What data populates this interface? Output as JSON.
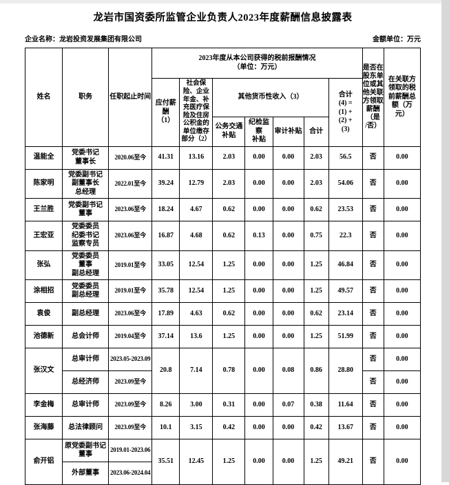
{
  "page": {
    "title": "龙岩市国资委所监管企业负责人2023年度薪酬信息披露表",
    "company_label": "企业名称：",
    "company_name": "龙岩投资发展集团有限公司",
    "unit_label": "金额单位：",
    "unit_value": "万元"
  },
  "table": {
    "header": {
      "name": "姓名",
      "position": "职务",
      "term": "任职起止时间",
      "group": "2023年度从本公司获得的税前报酬情况\n（单位：万元）",
      "payable": "应付薪酬\n（1）",
      "social": "社会保险、企业年金、补充医疗保险及住房公积金的单位缴存部分（2）",
      "other_income": "其他货币性收入（3）",
      "transport": "公务交通\n补贴",
      "discipline": "纪检监察\n补贴",
      "audit": "审计补贴",
      "subtotal": "合计",
      "total": "合计\n(4) =\n(1) +\n(2) +\n(3)",
      "shareholder": "是否在\n股东单\n位或其\n他关联\n方领取\n薪酬\n（是\n/否）",
      "related_total": "在关联方\n领取的税\n前薪酬总\n额（万\n元）"
    },
    "rows": [
      {
        "cells": [
          {
            "t": "温能全"
          },
          {
            "t": "党委书记\n董事长"
          },
          {
            "t": "2020.06至今"
          },
          {
            "t": "41.31"
          },
          {
            "t": "13.16"
          },
          {
            "t": "2.03"
          },
          {
            "t": "0.00"
          },
          {
            "t": "0.00"
          },
          {
            "t": "2.03"
          },
          {
            "t": "56.5"
          },
          {
            "t": "否"
          },
          {
            "t": "0.00"
          }
        ]
      },
      {
        "cells": [
          {
            "t": "陈家明"
          },
          {
            "t": "党委副书记\n副董事长\n总经理"
          },
          {
            "t": "2022.01至今"
          },
          {
            "t": "39.24"
          },
          {
            "t": "12.79"
          },
          {
            "t": "2.03"
          },
          {
            "t": "0.00"
          },
          {
            "t": "0.00"
          },
          {
            "t": "2.03"
          },
          {
            "t": "54.06"
          },
          {
            "t": "否"
          },
          {
            "t": "0.00"
          }
        ]
      },
      {
        "cells": [
          {
            "t": "王兰胜"
          },
          {
            "t": "党委副书记\n董事"
          },
          {
            "t": "2023.06至今"
          },
          {
            "t": "18.24"
          },
          {
            "t": "4.67"
          },
          {
            "t": "0.62"
          },
          {
            "t": "0.00"
          },
          {
            "t": "0.00"
          },
          {
            "t": "0.62"
          },
          {
            "t": "23.53"
          },
          {
            "t": "否"
          },
          {
            "t": "0.00"
          }
        ]
      },
      {
        "cells": [
          {
            "t": "王宏亚"
          },
          {
            "t": "党委委员\n纪委书记\n监察专员"
          },
          {
            "t": "2023.06至今"
          },
          {
            "t": "16.87"
          },
          {
            "t": "4.68"
          },
          {
            "t": "0.62"
          },
          {
            "t": "0.13"
          },
          {
            "t": "0.00"
          },
          {
            "t": "0.75"
          },
          {
            "t": "22.3"
          },
          {
            "t": "否"
          },
          {
            "t": "0.00"
          }
        ]
      },
      {
        "cells": [
          {
            "t": "张弘"
          },
          {
            "t": "党委委员\n董事\n副总经理"
          },
          {
            "t": "2019.01至今"
          },
          {
            "t": "33.05"
          },
          {
            "t": "12.54"
          },
          {
            "t": "1.25"
          },
          {
            "t": "0.00"
          },
          {
            "t": "0.00"
          },
          {
            "t": "1.25"
          },
          {
            "t": "46.84"
          },
          {
            "t": "否"
          },
          {
            "t": "0.00"
          }
        ]
      },
      {
        "cells": [
          {
            "t": "涂相招"
          },
          {
            "t": "党委委员\n副总经理"
          },
          {
            "t": "2019.01至今"
          },
          {
            "t": "35.78"
          },
          {
            "t": "12.54"
          },
          {
            "t": "1.25"
          },
          {
            "t": "0.00"
          },
          {
            "t": "0.00"
          },
          {
            "t": "1.25"
          },
          {
            "t": "49.57"
          },
          {
            "t": "否"
          },
          {
            "t": "0.00"
          }
        ]
      },
      {
        "cells": [
          {
            "t": "袁俊"
          },
          {
            "t": "副总经理"
          },
          {
            "t": "2023.06至今"
          },
          {
            "t": "17.89"
          },
          {
            "t": "4.63"
          },
          {
            "t": "0.62"
          },
          {
            "t": "0.00"
          },
          {
            "t": "0.00"
          },
          {
            "t": "0.62"
          },
          {
            "t": "23.14"
          },
          {
            "t": "否"
          },
          {
            "t": "0.00"
          }
        ]
      },
      {
        "cells": [
          {
            "t": "池德新"
          },
          {
            "t": "总会计师"
          },
          {
            "t": "2019.04至今"
          },
          {
            "t": "37.14"
          },
          {
            "t": "13.6"
          },
          {
            "t": "1.25"
          },
          {
            "t": "0.00"
          },
          {
            "t": "0.00"
          },
          {
            "t": "1.25"
          },
          {
            "t": "51.99"
          },
          {
            "t": "否"
          },
          {
            "t": "0.00"
          }
        ]
      },
      {
        "cells": [
          {
            "t": "张汉文",
            "rs": 2
          },
          {
            "t": "总审计师"
          },
          {
            "t": "2023.05-2023.09"
          },
          {
            "t": "20.8",
            "rs": 2
          },
          {
            "t": "7.14",
            "rs": 2
          },
          {
            "t": "0.78",
            "rs": 2
          },
          {
            "t": "0.00",
            "rs": 2
          },
          {
            "t": "0.08",
            "rs": 2
          },
          {
            "t": "0.86",
            "rs": 2
          },
          {
            "t": "28.80",
            "rs": 2
          },
          {
            "t": "否"
          },
          {
            "t": "0.00"
          }
        ]
      },
      {
        "cells": [
          {
            "t": "总经济师"
          },
          {
            "t": "2023.09至今"
          },
          {
            "t": "否"
          },
          {
            "t": "0.00"
          }
        ]
      },
      {
        "cells": [
          {
            "t": "李金梅"
          },
          {
            "t": "总审计师"
          },
          {
            "t": "2023.09至今"
          },
          {
            "t": "8.26"
          },
          {
            "t": "3.00"
          },
          {
            "t": "0.31"
          },
          {
            "t": "0.00"
          },
          {
            "t": "0.07"
          },
          {
            "t": "0.38"
          },
          {
            "t": "11.64"
          },
          {
            "t": "否"
          },
          {
            "t": "0.00"
          }
        ]
      },
      {
        "cells": [
          {
            "t": "张海藤"
          },
          {
            "t": "总法律顾问"
          },
          {
            "t": "2023.09至今"
          },
          {
            "t": "10.1"
          },
          {
            "t": "3.15"
          },
          {
            "t": "0.42"
          },
          {
            "t": "0.00"
          },
          {
            "t": "0.00"
          },
          {
            "t": "0.42"
          },
          {
            "t": "13.67"
          },
          {
            "t": "否"
          },
          {
            "t": "0.00"
          }
        ]
      },
      {
        "cells": [
          {
            "t": "俞开铝",
            "rs": 2
          },
          {
            "t": "原党委副书记\n董事"
          },
          {
            "t": "2019.01-2023.06"
          },
          {
            "t": "35.51",
            "rs": 2
          },
          {
            "t": "12.45",
            "rs": 2
          },
          {
            "t": "1.25",
            "rs": 2
          },
          {
            "t": "0.00",
            "rs": 2
          },
          {
            "t": "0.00",
            "rs": 2
          },
          {
            "t": "1.25",
            "rs": 2
          },
          {
            "t": "49.21",
            "rs": 2
          },
          {
            "t": "否",
            "rs": 2
          },
          {
            "t": "0.00",
            "rs": 2
          }
        ]
      },
      {
        "cells": [
          {
            "t": "外部董事"
          },
          {
            "t": "2023.06-2024.04"
          }
        ]
      }
    ]
  }
}
